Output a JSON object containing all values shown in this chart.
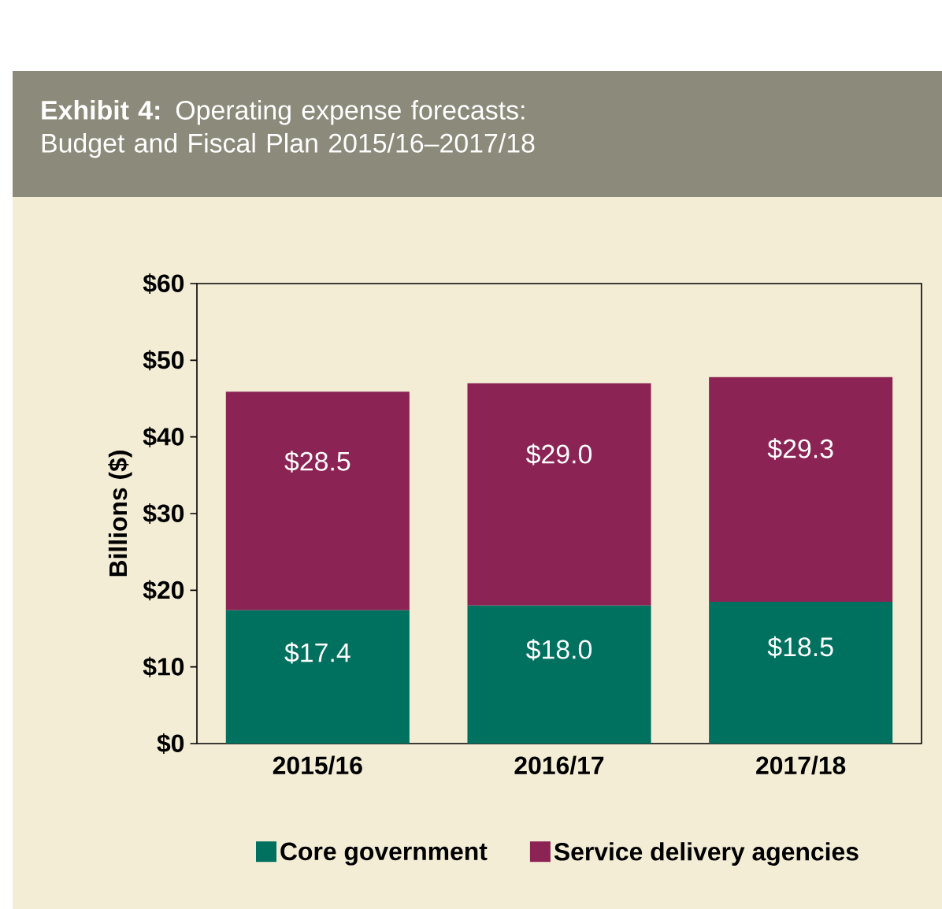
{
  "chart_data": {
    "type": "bar",
    "stacked": true,
    "title": "**Exhibit 4:** Operating expense forecasts: Budget and Fiscal Plan 2015/16–2017/18",
    "ylabel": "Billions ($)",
    "categories": [
      "2015/16",
      "2016/17",
      "2017/18"
    ],
    "series": [
      {
        "name": "Core government",
        "color": "#00705f",
        "values": [
          17.4,
          18.0,
          18.5
        ],
        "value_labels": [
          "$17.4",
          "$18.0",
          "$18.5"
        ]
      },
      {
        "name": "Service delivery agencies",
        "color": "#8b2454",
        "values": [
          28.5,
          29.0,
          29.3
        ],
        "value_labels": [
          "$28.5",
          "$29.0",
          "$29.3"
        ]
      }
    ],
    "ylim": [
      0,
      60
    ],
    "yticks": [
      {
        "value": 0,
        "label": "$0"
      },
      {
        "value": 10,
        "label": "$10"
      },
      {
        "value": 20,
        "label": "$20"
      },
      {
        "value": 30,
        "label": "$30"
      },
      {
        "value": 40,
        "label": "$40"
      },
      {
        "value": 50,
        "label": "$50"
      },
      {
        "value": 60,
        "label": "$60"
      }
    ],
    "legend": "bottom"
  }
}
